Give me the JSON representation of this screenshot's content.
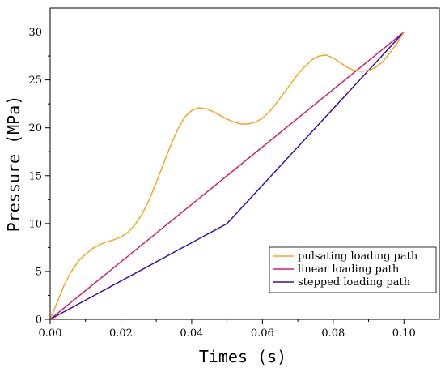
{
  "chart_data": {
    "type": "line",
    "title": "",
    "xlabel": "Times (s)",
    "ylabel": "Pressure (MPa)",
    "xlim": [
      0,
      0.11
    ],
    "ylim": [
      0,
      32.5
    ],
    "xticks": [
      0.0,
      0.02,
      0.04,
      0.06,
      0.08,
      0.1
    ],
    "xtick_labels": [
      "0.00",
      "0.02",
      "0.04",
      "0.06",
      "0.08",
      "0.10"
    ],
    "yticks": [
      0,
      5,
      10,
      15,
      20,
      25,
      30
    ],
    "ytick_labels": [
      "0",
      "5",
      "10",
      "15",
      "20",
      "25",
      "30"
    ],
    "grid": false,
    "legend_position": "bottom-right",
    "series": [
      {
        "name": "pulsating loading path",
        "color": "#F5A623",
        "x": [
          0,
          0.002,
          0.004,
          0.006,
          0.008,
          0.01,
          0.012,
          0.014,
          0.016,
          0.018,
          0.02,
          0.022,
          0.024,
          0.026,
          0.028,
          0.03,
          0.032,
          0.034,
          0.036,
          0.038,
          0.04,
          0.042,
          0.044,
          0.046,
          0.048,
          0.05,
          0.052,
          0.054,
          0.056,
          0.058,
          0.06,
          0.062,
          0.064,
          0.066,
          0.068,
          0.07,
          0.072,
          0.074,
          0.076,
          0.078,
          0.08,
          0.082,
          0.084,
          0.086,
          0.088,
          0.09,
          0.092,
          0.094,
          0.096,
          0.098,
          0.1
        ],
        "y": [
          0,
          1.8,
          3.6,
          5.0,
          6.1,
          6.8,
          7.4,
          7.8,
          8.1,
          8.3,
          8.6,
          9.1,
          9.9,
          11.0,
          12.5,
          14.3,
          16.2,
          18.1,
          19.8,
          21.1,
          21.8,
          22.1,
          22.0,
          21.7,
          21.3,
          20.9,
          20.6,
          20.4,
          20.4,
          20.6,
          21.0,
          21.7,
          22.6,
          23.6,
          24.6,
          25.6,
          26.4,
          27.1,
          27.5,
          27.6,
          27.3,
          26.8,
          26.3,
          26.0,
          25.9,
          26.0,
          26.3,
          26.9,
          27.8,
          28.8,
          30.0
        ]
      },
      {
        "name": "linear loading path",
        "color": "#D61F69",
        "x": [
          0,
          0.1
        ],
        "y": [
          0,
          30
        ]
      },
      {
        "name": "stepped loading path",
        "color": "#3B0BA8",
        "x": [
          0,
          0.05,
          0.1
        ],
        "y": [
          0,
          10,
          30
        ]
      }
    ]
  }
}
